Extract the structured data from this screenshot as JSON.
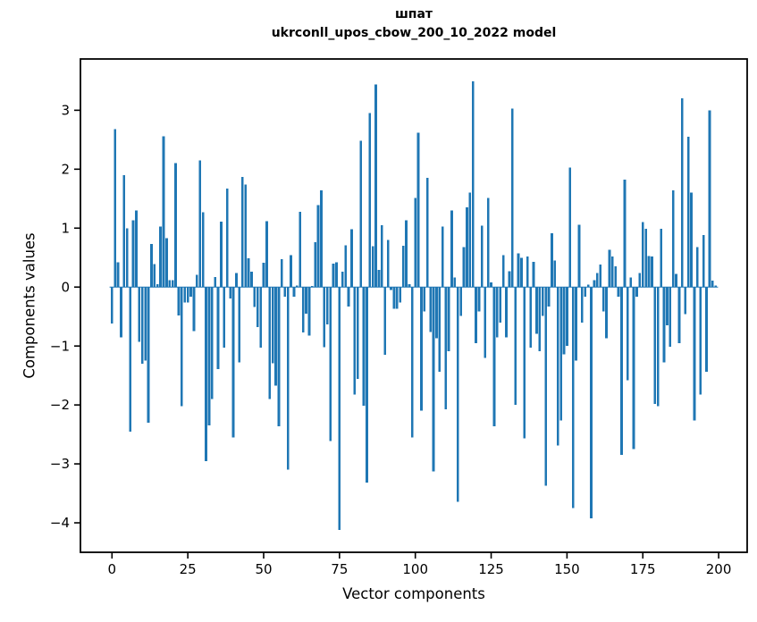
{
  "figure": {
    "title_line1": "шпат",
    "title_line2": "ukrconll_upos_cbow_200_10_2022 model"
  },
  "axes": {
    "xlabel": "Vector components",
    "ylabel": "Components values"
  },
  "chart_data": {
    "type": "bar",
    "title": "шпат\nukrconll_upos_cbow_200_10_2022 model",
    "xlabel": "Vector components",
    "ylabel": "Components values",
    "bar_color": "#1f77b4",
    "spine_color": "#000000",
    "grid": false,
    "legend": false,
    "x_start": 0,
    "bar_width_units": 0.8,
    "xlim": [
      -10.4,
      209.4
    ],
    "ylim": [
      -4.5,
      3.87
    ],
    "xtick_values": [
      0,
      25,
      50,
      75,
      100,
      125,
      150,
      175,
      200
    ],
    "xtick_labels": [
      "0",
      "25",
      "50",
      "75",
      "100",
      "125",
      "150",
      "175",
      "200"
    ],
    "ytick_values": [
      3,
      2,
      1,
      0,
      -1,
      -2,
      -3,
      -4
    ],
    "ytick_labels": [
      "3",
      "2",
      "1",
      "0",
      "−1",
      "−2",
      "−3",
      "−4"
    ],
    "values": [
      -0.62,
      2.68,
      0.42,
      -0.85,
      1.9,
      1.0,
      -2.45,
      1.13,
      1.3,
      -0.93,
      -1.3,
      -1.25,
      -2.3,
      0.73,
      0.39,
      0.05,
      1.03,
      2.56,
      0.83,
      0.12,
      0.12,
      2.1,
      -0.48,
      -2.02,
      -0.26,
      -0.26,
      -0.16,
      -0.75,
      0.21,
      2.15,
      1.27,
      -2.95,
      -2.35,
      -1.9,
      0.17,
      -1.39,
      1.11,
      -1.03,
      1.67,
      -0.19,
      -2.55,
      0.24,
      -1.28,
      1.87,
      1.74,
      0.49,
      0.26,
      -0.34,
      -0.68,
      -1.03,
      0.41,
      1.12,
      -1.9,
      -1.29,
      -1.67,
      -2.36,
      0.47,
      -0.16,
      -3.1,
      0.54,
      -0.16,
      0.03,
      1.28,
      -0.77,
      -0.45,
      -0.82,
      0.02,
      0.76,
      1.39,
      1.64,
      -1.02,
      -0.63,
      -2.61,
      0.4,
      0.42,
      -4.12,
      0.26,
      0.71,
      -0.33,
      0.98,
      -1.82,
      -1.56,
      2.48,
      -2.01,
      -3.32,
      2.95,
      0.69,
      3.44,
      0.29,
      1.05,
      -1.15,
      0.8,
      -0.05,
      -0.37,
      -0.37,
      -0.26,
      0.7,
      1.13,
      0.05,
      -2.55,
      1.51,
      2.62,
      -2.1,
      -0.41,
      1.85,
      -0.76,
      -3.13,
      -0.87,
      -1.44,
      1.03,
      -2.07,
      -1.09,
      1.3,
      0.16,
      -3.64,
      -0.49,
      0.68,
      1.35,
      1.6,
      3.49,
      -0.95,
      -0.41,
      1.04,
      -1.2,
      1.51,
      0.08,
      -2.36,
      -0.85,
      -0.6,
      0.54,
      -0.85,
      0.27,
      3.03,
      -2.0,
      0.57,
      0.5,
      -2.57,
      0.52,
      -1.03,
      0.43,
      -0.79,
      -1.09,
      -0.49,
      -3.37,
      -0.33,
      0.91,
      0.45,
      -2.69,
      -2.26,
      -1.14,
      -1.0,
      2.03,
      -3.75,
      -1.25,
      1.06,
      -0.6,
      -0.16,
      0.04,
      -3.92,
      0.12,
      0.24,
      0.38,
      -0.41,
      -0.87,
      0.63,
      0.52,
      0.35,
      -0.16,
      -2.85,
      1.82,
      -1.58,
      0.16,
      -2.75,
      -0.16,
      0.24,
      1.1,
      0.99,
      0.53,
      0.52,
      -1.98,
      -2.02,
      0.99,
      -1.28,
      -0.65,
      -1.01,
      1.64,
      0.22,
      -0.95,
      3.2,
      -0.46,
      2.55,
      1.6,
      -2.26,
      0.68,
      -1.82,
      0.88,
      -1.44,
      3.0,
      0.11,
      0.03
    ]
  }
}
